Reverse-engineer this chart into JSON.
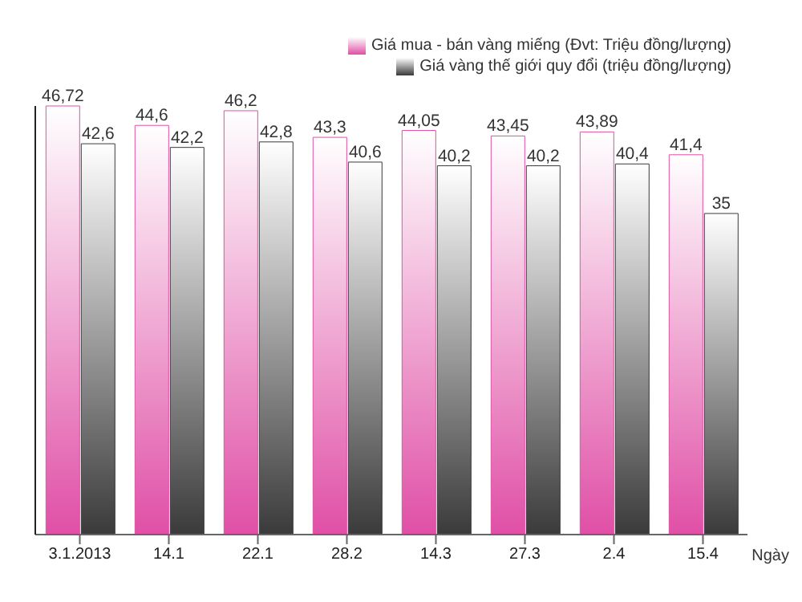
{
  "chart_data": {
    "type": "bar",
    "xlabel": "Ngày",
    "categories": [
      "3.1.2013",
      "14.1",
      "22.1",
      "28.2",
      "14.3",
      "27.3",
      "2.4",
      "15.4"
    ],
    "series": [
      {
        "name": "Giá mua - bán vàng miếng (Đvt: Triệu đồng/lượng)",
        "color": "#e04fa6",
        "values": [
          46.72,
          44.6,
          46.2,
          43.3,
          44.05,
          43.45,
          43.89,
          41.4
        ],
        "value_labels": [
          "46,72",
          "44,6",
          "46,2",
          "43,3",
          "44,05",
          "43,45",
          "43,89",
          "41,4"
        ]
      },
      {
        "name": "Giá vàng thế giới quy đổi (triệu đồng/lượng)",
        "color": "#3a3a3a",
        "values": [
          42.6,
          42.2,
          42.8,
          40.6,
          40.2,
          40.2,
          40.4,
          35
        ],
        "value_labels": [
          "42,6",
          "42,2",
          "42,8",
          "40,6",
          "40,2",
          "40,2",
          "40,4",
          "35"
        ]
      }
    ],
    "legend": "top right"
  }
}
